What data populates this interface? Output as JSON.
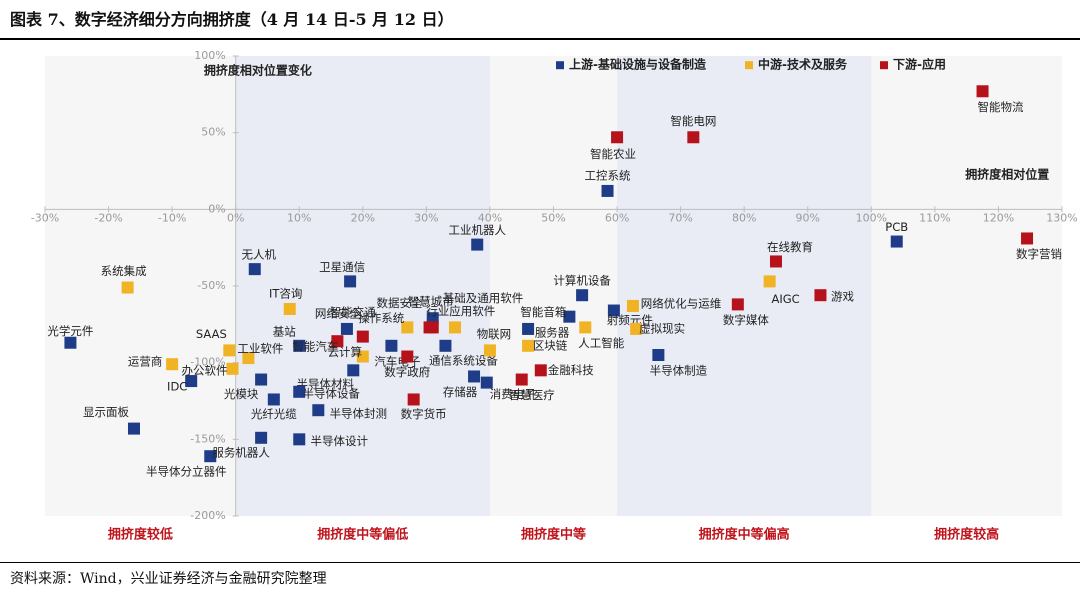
{
  "title": "图表 7、数字经济细分方向拥挤度（4 月 14 日-5 月 12 日）",
  "source": "资料来源：Wind，兴业证券经济与金融研究院整理",
  "colors": {
    "upstream": "#1f3c88",
    "midstream": "#f0b323",
    "downstream": "#b5121b",
    "band_light": "#e9ecf5",
    "band_plain": "#f6f6f6",
    "zone_label": "#c0141c"
  },
  "chart_data": {
    "type": "scatter",
    "xlabel": "拥挤度相对位置",
    "ylabel": "拥挤度相对位置变化",
    "xlim": [
      -30,
      130
    ],
    "ylim": [
      -200,
      100
    ],
    "x_ticks": [
      "-30%",
      "-20%",
      "-10%",
      "0%",
      "10%",
      "20%",
      "30%",
      "40%",
      "50%",
      "60%",
      "70%",
      "80%",
      "90%",
      "100%",
      "110%",
      "120%",
      "130%"
    ],
    "y_ticks": [
      "100%",
      "50%",
      "0%",
      "-50%",
      "-100%",
      "-150%",
      "-200%"
    ],
    "legend_position": "top-right",
    "zones": [
      "拥挤度较低",
      "拥挤度中等偏低",
      "拥挤度中等",
      "拥挤度中等偏高",
      "拥挤度较高"
    ],
    "series": [
      {
        "name": "上游-基础设施与设备制造",
        "color": "#1f3c88",
        "points": [
          {
            "label": "光学元件",
            "x": -26,
            "y": -87
          },
          {
            "label": "无人机",
            "x": 3,
            "y": -39
          },
          {
            "label": "卫星通信",
            "x": 18,
            "y": -47
          },
          {
            "label": "工业机器人",
            "x": 38,
            "y": -23
          },
          {
            "label": "PCB",
            "x": 104,
            "y": -21
          },
          {
            "label": "工控系统",
            "x": 58.5,
            "y": 12
          },
          {
            "label": "计算机设备",
            "x": 54.5,
            "y": -56
          },
          {
            "label": "基站",
            "x": 10,
            "y": -89
          },
          {
            "label": "网络安全",
            "x": 17.5,
            "y": -78
          },
          {
            "label": "汽车电子",
            "x": 24.5,
            "y": -89
          },
          {
            "label": "智慧城市",
            "x": 31,
            "y": -71
          },
          {
            "label": "服务器",
            "x": 46,
            "y": -78
          },
          {
            "label": "智能音箱",
            "x": 52.5,
            "y": -70
          },
          {
            "label": "射频元件",
            "x": 59.5,
            "y": -66
          },
          {
            "label": "半导体制造",
            "x": 66.5,
            "y": -95
          },
          {
            "label": "通信系统设备",
            "x": 33,
            "y": -89
          },
          {
            "label": "半导体材料",
            "x": 18.5,
            "y": -105
          },
          {
            "label": "存储器",
            "x": 37.5,
            "y": -109
          },
          {
            "label": "消费电子",
            "x": 39.5,
            "y": -113
          },
          {
            "label": "光模块",
            "x": 4,
            "y": -111
          },
          {
            "label": "半导体设备",
            "x": 10,
            "y": -119
          },
          {
            "label": "光纤光缆",
            "x": 6,
            "y": -124
          },
          {
            "label": "半导体封测",
            "x": 13,
            "y": -131
          },
          {
            "label": "IDC",
            "x": -7,
            "y": -112
          },
          {
            "label": "显示面板",
            "x": -16,
            "y": -143
          },
          {
            "label": "半导体分立器件",
            "x": -4,
            "y": -161
          },
          {
            "label": "服务机器人",
            "x": 4,
            "y": -149
          },
          {
            "label": "半导体设计",
            "x": 10,
            "y": -150
          }
        ]
      },
      {
        "name": "中游-技术及服务",
        "color": "#f0b323",
        "points": [
          {
            "label": "系统集成",
            "x": -17,
            "y": -51
          },
          {
            "label": "IT咨询",
            "x": 8.5,
            "y": -65
          },
          {
            "label": "SAAS",
            "x": -1,
            "y": -92
          },
          {
            "label": "工业软件",
            "x": 2,
            "y": -97
          },
          {
            "label": "运营商",
            "x": -10,
            "y": -101
          },
          {
            "label": "办公软件",
            "x": -0.5,
            "y": -104
          },
          {
            "label": "操作系统",
            "x": 27,
            "y": -77
          },
          {
            "label": "基础及通用软件",
            "x": 34.5,
            "y": -77
          },
          {
            "label": "云计算",
            "x": 20,
            "y": -96
          },
          {
            "label": "物联网",
            "x": 40,
            "y": -92
          },
          {
            "label": "区块链",
            "x": 46,
            "y": -89
          },
          {
            "label": "网络优化与运维",
            "x": 62.5,
            "y": -63
          },
          {
            "label": "虚拟现实",
            "x": 63,
            "y": -78
          },
          {
            "label": "人工智能",
            "x": 55,
            "y": -77
          },
          {
            "label": "AIGC",
            "x": 84,
            "y": -47
          }
        ]
      },
      {
        "name": "下游-应用",
        "color": "#b5121b",
        "points": [
          {
            "label": "智能物流",
            "x": 117.5,
            "y": 77
          },
          {
            "label": "智能电网",
            "x": 72,
            "y": 47
          },
          {
            "label": "智能农业",
            "x": 60,
            "y": 47
          },
          {
            "label": "在线教育",
            "x": 85,
            "y": -34
          },
          {
            "label": "游戏",
            "x": 92,
            "y": -56
          },
          {
            "label": "数字媒体",
            "x": 79,
            "y": -62
          },
          {
            "label": "数字营销",
            "x": 124.5,
            "y": -19
          },
          {
            "label": "数据安全",
            "x": 30.5,
            "y": -77
          },
          {
            "label": "智能交通",
            "x": 20,
            "y": -83
          },
          {
            "label": "智能汽车",
            "x": 16,
            "y": -86
          },
          {
            "label": "行业应用软件",
            "x": 31,
            "y": -77
          },
          {
            "label": "数字政府",
            "x": 27,
            "y": -96
          },
          {
            "label": "数字货币",
            "x": 28,
            "y": -124
          },
          {
            "label": "金融科技",
            "x": 48,
            "y": -105
          },
          {
            "label": "智慧医疗",
            "x": 45,
            "y": -111
          }
        ]
      }
    ]
  }
}
